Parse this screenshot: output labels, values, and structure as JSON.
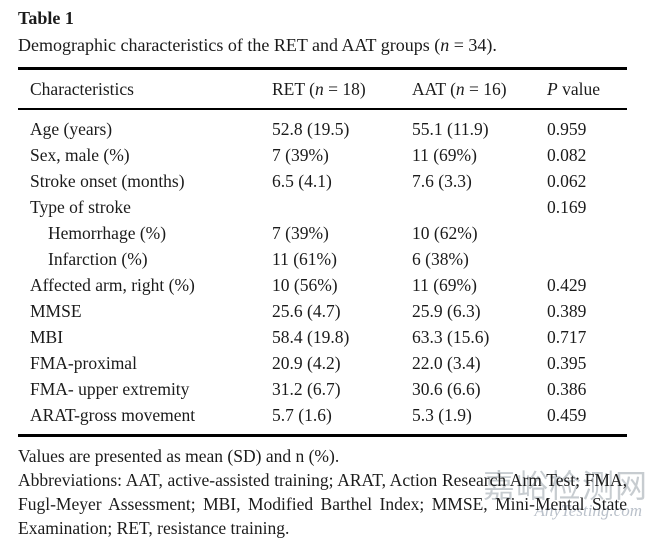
{
  "page": {
    "title": "Table 1",
    "caption": {
      "pre": "Demographic characteristics of the RET and AAT groups (",
      "it": "n",
      "post": " = 34)."
    }
  },
  "chart_data": {
    "type": "table",
    "title": "Demographic characteristics of the RET and AAT groups (n = 34).",
    "columns": [
      "Characteristics",
      "RET (n = 18)",
      "AAT (n = 16)",
      "P value"
    ],
    "rows": [
      [
        "Age (years)",
        "52.8 (19.5)",
        "55.1 (11.9)",
        "0.959"
      ],
      [
        "Sex, male (%)",
        "7 (39%)",
        "11 (69%)",
        "0.082"
      ],
      [
        "Stroke onset (months)",
        "6.5 (4.1)",
        "7.6 (3.3)",
        "0.062"
      ],
      [
        "Type of stroke",
        "",
        "",
        "0.169"
      ],
      [
        "Hemorrhage (%)",
        "7 (39%)",
        "10 (62%)",
        ""
      ],
      [
        "Infarction (%)",
        "11 (61%)",
        "6 (38%)",
        ""
      ],
      [
        "Affected arm, right (%)",
        "10 (56%)",
        "11 (69%)",
        "0.429"
      ],
      [
        "MMSE",
        "25.6 (4.7)",
        "25.9 (6.3)",
        "0.389"
      ],
      [
        "MBI",
        "58.4 (19.8)",
        "63.3 (15.6)",
        "0.717"
      ],
      [
        "FMA-proximal",
        "20.9 (4.2)",
        "22.0 (3.4)",
        "0.395"
      ],
      [
        "FMA- upper extremity",
        "31.2 (6.7)",
        "30.6 (6.6)",
        "0.386"
      ],
      [
        "ARAT-gross movement",
        "5.7 (1.6)",
        "5.3 (1.9)",
        "0.459"
      ]
    ]
  },
  "table": {
    "columns": [
      {
        "pre": "Characteristics",
        "it": "",
        "post": ""
      },
      {
        "pre": "RET (",
        "it": "n",
        "post": " = 18)"
      },
      {
        "pre": "AAT (",
        "it": "n",
        "post": " = 16)"
      },
      {
        "pre": "",
        "it": "P",
        "post": " value"
      }
    ],
    "rows": [
      {
        "label": "Age (years)",
        "indent": false,
        "ret": "52.8 (19.5)",
        "aat": "55.1 (11.9)",
        "p": "0.959"
      },
      {
        "label": "Sex, male (%)",
        "indent": false,
        "ret": "7 (39%)",
        "aat": "11 (69%)",
        "p": "0.082"
      },
      {
        "label": "Stroke onset (months)",
        "indent": false,
        "ret": "6.5 (4.1)",
        "aat": "7.6 (3.3)",
        "p": "0.062"
      },
      {
        "label": "Type of stroke",
        "indent": false,
        "ret": "",
        "aat": "",
        "p": "0.169"
      },
      {
        "label": "Hemorrhage (%)",
        "indent": true,
        "ret": "7 (39%)",
        "aat": "10 (62%)",
        "p": ""
      },
      {
        "label": "Infarction (%)",
        "indent": true,
        "ret": "11 (61%)",
        "aat": "6 (38%)",
        "p": ""
      },
      {
        "label": "Affected arm, right (%)",
        "indent": false,
        "ret": "10 (56%)",
        "aat": "11 (69%)",
        "p": "0.429"
      },
      {
        "label": "MMSE",
        "indent": false,
        "ret": "25.6 (4.7)",
        "aat": "25.9 (6.3)",
        "p": "0.389"
      },
      {
        "label": "MBI",
        "indent": false,
        "ret": "58.4 (19.8)",
        "aat": "63.3 (15.6)",
        "p": "0.717"
      },
      {
        "label": "FMA-proximal",
        "indent": false,
        "ret": "20.9 (4.2)",
        "aat": "22.0 (3.4)",
        "p": "0.395"
      },
      {
        "label": "FMA- upper extremity",
        "indent": false,
        "ret": "31.2 (6.7)",
        "aat": "30.6 (6.6)",
        "p": "0.386"
      },
      {
        "label": "ARAT-gross movement",
        "indent": false,
        "ret": "5.7 (1.6)",
        "aat": "5.3 (1.9)",
        "p": "0.459"
      }
    ]
  },
  "footnotes": {
    "values_note": "Values are presented as mean (SD) and n (%).",
    "abbreviations": "Abbreviations: AAT, active-assisted training; ARAT, Action Research Arm Test; FMA, Fugl-Meyer Assessment; MBI, Modified Barthel Index; MMSE, Mini-Mental State Examination; RET, resistance training."
  },
  "watermark": {
    "site_name_cn": "嘉峪检测网",
    "site_domain": "AnyTesting.com",
    "color_cn": "#9aa3aa",
    "color_en": "#96a0af"
  },
  "colors": {
    "text": "#1b1b1b",
    "rule": "#000000",
    "background": "#ffffff"
  }
}
